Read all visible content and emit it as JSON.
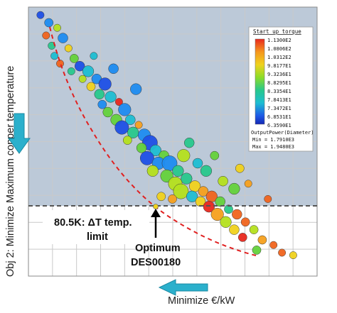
{
  "chart_data": {
    "type": "scatter",
    "xlabel": "Minimize €/kW",
    "ylabel": "Obj 2: Minimize Maximum copper temperature",
    "x_ticks": [],
    "y_ticks": [],
    "grid": true,
    "constraint_line": {
      "label_line1": "80.5K: ΔT temp.",
      "label_line2": "limit",
      "style": "dashed",
      "color": "#555555"
    },
    "pareto_front": {
      "style": "dashed",
      "color": "#e02020"
    },
    "optimum": {
      "label_line1": "Optimum",
      "label_line2": "DES00180"
    },
    "colorbar": {
      "title": "Start up torque",
      "labels": [
        "1.1300E2",
        "1.0806E2",
        "1.0312E2",
        "9.8177E1",
        "9.3236E1",
        "8.8295E1",
        "8.3354E1",
        "7.8413E1",
        "7.3472E1",
        "6.8531E1",
        "6.3590E1"
      ],
      "colors": [
        "#e8281e",
        "#f0641e",
        "#f5a01e",
        "#f0d21e",
        "#b4e01e",
        "#64d23c",
        "#28c88c",
        "#1ebed2",
        "#1e8cf0",
        "#1e50e6",
        "#1428b4"
      ],
      "size_title": "OutputPower(Diameter)",
      "size_min": "Min = 1.7910E3",
      "size_max": "Max = 1.9480E3",
      "placement": "top-right"
    },
    "points": [
      {
        "x": 0.03,
        "y": 0.98,
        "c": 0.1,
        "s": 0.3
      },
      {
        "x": 0.06,
        "y": 0.95,
        "c": 0.2,
        "s": 0.4
      },
      {
        "x": 0.09,
        "y": 0.93,
        "c": 0.55,
        "s": 0.3
      },
      {
        "x": 0.05,
        "y": 0.9,
        "c": 0.9,
        "s": 0.3
      },
      {
        "x": 0.11,
        "y": 0.89,
        "c": 0.15,
        "s": 0.5
      },
      {
        "x": 0.07,
        "y": 0.86,
        "c": 0.4,
        "s": 0.3
      },
      {
        "x": 0.13,
        "y": 0.85,
        "c": 0.7,
        "s": 0.3
      },
      {
        "x": 0.08,
        "y": 0.82,
        "c": 0.3,
        "s": 0.3
      },
      {
        "x": 0.15,
        "y": 0.81,
        "c": 0.45,
        "s": 0.4
      },
      {
        "x": 0.1,
        "y": 0.79,
        "c": 0.85,
        "s": 0.3
      },
      {
        "x": 0.17,
        "y": 0.78,
        "c": 0.1,
        "s": 0.5
      },
      {
        "x": 0.14,
        "y": 0.76,
        "c": 0.35,
        "s": 0.3
      },
      {
        "x": 0.2,
        "y": 0.76,
        "c": 0.25,
        "s": 0.6
      },
      {
        "x": 0.18,
        "y": 0.73,
        "c": 0.55,
        "s": 0.3
      },
      {
        "x": 0.23,
        "y": 0.73,
        "c": 0.15,
        "s": 0.5
      },
      {
        "x": 0.21,
        "y": 0.7,
        "c": 0.65,
        "s": 0.4
      },
      {
        "x": 0.26,
        "y": 0.71,
        "c": 0.05,
        "s": 0.7
      },
      {
        "x": 0.24,
        "y": 0.67,
        "c": 0.4,
        "s": 0.5
      },
      {
        "x": 0.28,
        "y": 0.66,
        "c": 0.3,
        "s": 0.6
      },
      {
        "x": 0.25,
        "y": 0.63,
        "c": 0.2,
        "s": 0.4
      },
      {
        "x": 0.31,
        "y": 0.64,
        "c": 0.95,
        "s": 0.3
      },
      {
        "x": 0.27,
        "y": 0.6,
        "c": 0.45,
        "s": 0.5
      },
      {
        "x": 0.33,
        "y": 0.61,
        "c": 0.15,
        "s": 0.7
      },
      {
        "x": 0.3,
        "y": 0.57,
        "c": 0.5,
        "s": 0.6
      },
      {
        "x": 0.35,
        "y": 0.57,
        "c": 0.25,
        "s": 0.5
      },
      {
        "x": 0.32,
        "y": 0.54,
        "c": 0.1,
        "s": 0.8
      },
      {
        "x": 0.38,
        "y": 0.55,
        "c": 0.8,
        "s": 0.3
      },
      {
        "x": 0.36,
        "y": 0.52,
        "c": 0.35,
        "s": 0.6
      },
      {
        "x": 0.4,
        "y": 0.51,
        "c": 0.2,
        "s": 0.7
      },
      {
        "x": 0.34,
        "y": 0.49,
        "c": 0.6,
        "s": 0.4
      },
      {
        "x": 0.42,
        "y": 0.48,
        "c": 0.1,
        "s": 0.9
      },
      {
        "x": 0.39,
        "y": 0.46,
        "c": 0.5,
        "s": 0.5
      },
      {
        "x": 0.44,
        "y": 0.45,
        "c": 0.3,
        "s": 0.6
      },
      {
        "x": 0.41,
        "y": 0.42,
        "c": 0.05,
        "s": 0.8
      },
      {
        "x": 0.47,
        "y": 0.43,
        "c": 0.45,
        "s": 0.5
      },
      {
        "x": 0.45,
        "y": 0.4,
        "c": 0.2,
        "s": 0.7
      },
      {
        "x": 0.49,
        "y": 0.4,
        "c": 0.15,
        "s": 0.9
      },
      {
        "x": 0.43,
        "y": 0.37,
        "c": 0.55,
        "s": 0.6
      },
      {
        "x": 0.52,
        "y": 0.37,
        "c": 0.35,
        "s": 0.6
      },
      {
        "x": 0.48,
        "y": 0.35,
        "c": 0.45,
        "s": 0.7
      },
      {
        "x": 0.55,
        "y": 0.34,
        "c": 0.4,
        "s": 0.6
      },
      {
        "x": 0.51,
        "y": 0.32,
        "c": 0.6,
        "s": 0.8
      },
      {
        "x": 0.58,
        "y": 0.31,
        "c": 0.7,
        "s": 0.6
      },
      {
        "x": 0.53,
        "y": 0.29,
        "c": 0.55,
        "s": 0.9
      },
      {
        "x": 0.61,
        "y": 0.29,
        "c": 0.8,
        "s": 0.5
      },
      {
        "x": 0.57,
        "y": 0.27,
        "c": 0.3,
        "s": 0.6
      },
      {
        "x": 0.64,
        "y": 0.27,
        "c": 0.85,
        "s": 0.6
      },
      {
        "x": 0.6,
        "y": 0.25,
        "c": 0.65,
        "s": 0.5
      },
      {
        "x": 0.67,
        "y": 0.25,
        "c": 0.5,
        "s": 0.5
      },
      {
        "x": 0.63,
        "y": 0.23,
        "c": 0.95,
        "s": 0.6
      },
      {
        "x": 0.7,
        "y": 0.22,
        "c": 0.4,
        "s": 0.4
      },
      {
        "x": 0.66,
        "y": 0.2,
        "c": 0.75,
        "s": 0.7
      },
      {
        "x": 0.73,
        "y": 0.2,
        "c": 0.85,
        "s": 0.5
      },
      {
        "x": 0.69,
        "y": 0.17,
        "c": 0.55,
        "s": 0.6
      },
      {
        "x": 0.76,
        "y": 0.17,
        "c": 0.9,
        "s": 0.4
      },
      {
        "x": 0.72,
        "y": 0.14,
        "c": 0.7,
        "s": 0.5
      },
      {
        "x": 0.79,
        "y": 0.14,
        "c": 0.6,
        "s": 0.4
      },
      {
        "x": 0.75,
        "y": 0.11,
        "c": 0.95,
        "s": 0.4
      },
      {
        "x": 0.82,
        "y": 0.1,
        "c": 0.75,
        "s": 0.4
      },
      {
        "x": 0.86,
        "y": 0.08,
        "c": 0.9,
        "s": 0.3
      },
      {
        "x": 0.8,
        "y": 0.06,
        "c": 0.5,
        "s": 0.4
      },
      {
        "x": 0.89,
        "y": 0.05,
        "c": 0.85,
        "s": 0.3
      },
      {
        "x": 0.93,
        "y": 0.04,
        "c": 0.7,
        "s": 0.3
      },
      {
        "x": 0.46,
        "y": 0.27,
        "c": 0.65,
        "s": 0.4
      },
      {
        "x": 0.5,
        "y": 0.26,
        "c": 0.8,
        "s": 0.4
      },
      {
        "x": 0.54,
        "y": 0.43,
        "c": 0.55,
        "s": 0.7
      },
      {
        "x": 0.59,
        "y": 0.4,
        "c": 0.25,
        "s": 0.5
      },
      {
        "x": 0.62,
        "y": 0.37,
        "c": 0.4,
        "s": 0.6
      },
      {
        "x": 0.68,
        "y": 0.33,
        "c": 0.6,
        "s": 0.5
      },
      {
        "x": 0.72,
        "y": 0.3,
        "c": 0.5,
        "s": 0.6
      },
      {
        "x": 0.77,
        "y": 0.32,
        "c": 0.8,
        "s": 0.3
      },
      {
        "x": 0.22,
        "y": 0.82,
        "c": 0.3,
        "s": 0.3
      },
      {
        "x": 0.29,
        "y": 0.77,
        "c": 0.2,
        "s": 0.5
      },
      {
        "x": 0.37,
        "y": 0.69,
        "c": 0.15,
        "s": 0.6
      },
      {
        "x": 0.56,
        "y": 0.48,
        "c": 0.35,
        "s": 0.5
      },
      {
        "x": 0.65,
        "y": 0.43,
        "c": 0.45,
        "s": 0.4
      },
      {
        "x": 0.74,
        "y": 0.38,
        "c": 0.65,
        "s": 0.4
      },
      {
        "x": 0.84,
        "y": 0.26,
        "c": 0.85,
        "s": 0.3
      }
    ]
  }
}
